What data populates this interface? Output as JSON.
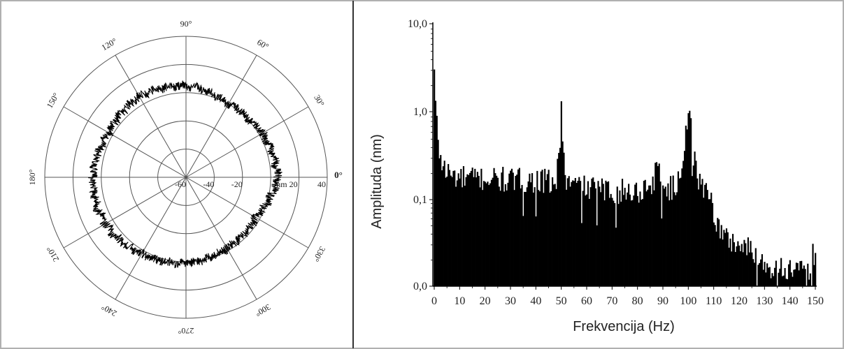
{
  "chart_data": [
    {
      "type": "polar",
      "angle_labels": [
        "0°",
        "30°",
        "60°",
        "90°",
        "120°",
        "150°",
        "180°",
        "210°",
        "240°",
        "270°",
        "300°",
        "330°"
      ],
      "radial_tick_labels": [
        "-60",
        "-40",
        "-20",
        "20",
        "40"
      ],
      "radial_unit": "nm",
      "radial_rings": [
        -60,
        -40,
        -20,
        0,
        20,
        40
      ],
      "rlim": [
        -60,
        40
      ],
      "grid": true,
      "series": [
        {
          "description_values": "radial deviation r(θ) sampled every 30°",
          "theta_deg": [
            0,
            30,
            60,
            90,
            120,
            150,
            180,
            210,
            240,
            270,
            300,
            330,
            360
          ],
          "r": [
            5,
            2,
            0,
            5,
            6,
            3,
            6,
            6,
            3,
            1,
            -2,
            -3,
            5
          ],
          "noise_amplitude": 3
        }
      ]
    },
    {
      "type": "bar",
      "xlabel": "Frekvencija (Hz)",
      "ylabel": "Amplituda (nm)",
      "x_tick_labels": [
        "0",
        "10",
        "20",
        "30",
        "40",
        "50",
        "60",
        "70",
        "80",
        "90",
        "100",
        "110",
        "120",
        "130",
        "140",
        "150"
      ],
      "y_tick_labels": [
        "0,0",
        "0,1",
        "1,0",
        "10,0"
      ],
      "xlim": [
        0,
        150
      ],
      "ylim_display": [
        0,
        10
      ],
      "scale": "log",
      "grid": false,
      "envelope": {
        "x_hz": [
          0,
          0.5,
          1,
          2,
          3,
          5,
          10,
          20,
          30,
          40,
          48,
          49.5,
          50,
          50.5,
          52,
          60,
          70,
          80,
          86,
          88,
          90,
          95,
          98,
          99,
          100,
          101,
          102,
          104,
          108,
          110,
          112,
          115,
          120,
          125,
          130,
          135,
          140,
          145,
          148,
          149,
          150
        ],
        "amplitude_nm": [
          3.0,
          1.1,
          0.7,
          0.35,
          0.25,
          0.2,
          0.17,
          0.17,
          0.16,
          0.16,
          0.15,
          0.4,
          1.3,
          0.4,
          0.15,
          0.13,
          0.12,
          0.12,
          0.15,
          0.24,
          0.13,
          0.13,
          0.3,
          0.65,
          0.95,
          0.7,
          0.3,
          0.15,
          0.13,
          0.07,
          0.045,
          0.035,
          0.03,
          0.025,
          0.018,
          0.016,
          0.015,
          0.014,
          0.014,
          0.028,
          0.02
        ]
      },
      "noise_ratio": 0.35
    }
  ]
}
